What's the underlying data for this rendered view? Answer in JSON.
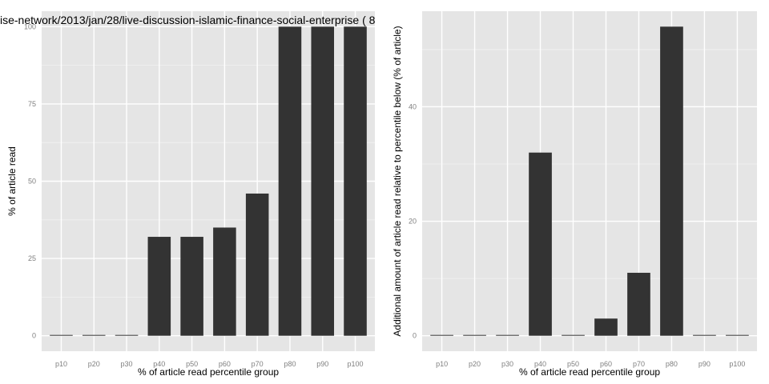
{
  "chart_data": [
    {
      "type": "bar",
      "title": "ise-network/2013/jan/28/live-discussion-islamic-finance-social-enterprise ( 8",
      "xlabel": "% of article read percentile group",
      "ylabel": "% of article read",
      "categories": [
        "p10",
        "p20",
        "p30",
        "p40",
        "p50",
        "p60",
        "p70",
        "p80",
        "p90",
        "p100"
      ],
      "values": [
        0,
        0,
        0,
        32,
        32,
        35,
        46,
        100,
        100,
        100
      ],
      "ylim": [
        -5,
        105
      ],
      "yticks": [
        0,
        25,
        50,
        75,
        100
      ],
      "ytick_labels": [
        "0",
        "25",
        "50",
        "75",
        "100"
      ],
      "grid": true
    },
    {
      "type": "bar",
      "title": "",
      "xlabel": "% of article read percentile group",
      "ylabel": "Additional amount of article read relative to percentile below (% of article)",
      "categories": [
        "p10",
        "p20",
        "p30",
        "p40",
        "p50",
        "p60",
        "p70",
        "p80",
        "p90",
        "p100"
      ],
      "values": [
        0,
        0,
        0,
        32,
        0,
        3,
        11,
        54,
        0,
        0
      ],
      "ylim": [
        -2.7,
        56.7
      ],
      "yticks": [
        0,
        20,
        40
      ],
      "ytick_labels": [
        "0",
        "20",
        "40"
      ],
      "grid": true
    }
  ],
  "colors": {
    "panel_background": "#e5e5e5",
    "grid_major": "#ffffff",
    "grid_minor": "#f2f2f2",
    "bar_fill": "#333333",
    "tick_text": "#7f7f7f",
    "text": "#000000"
  }
}
